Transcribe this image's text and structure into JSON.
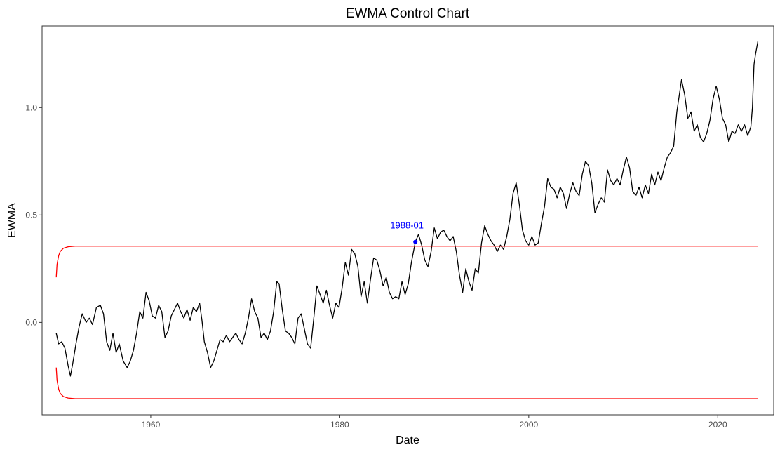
{
  "chart_data": {
    "type": "line",
    "title": "EWMA Control Chart",
    "xlabel": "Date",
    "ylabel": "EWMA",
    "xlim": [
      "1948-07",
      "2025-12"
    ],
    "ylim": [
      -0.43,
      1.38
    ],
    "x_ticks": [
      1960,
      1980,
      2000,
      2020
    ],
    "y_ticks": [
      0.0,
      0.5,
      1.0
    ],
    "y_tick_labels": [
      "0.0",
      "0.5",
      "1.0"
    ],
    "grid": false,
    "series": [
      {
        "color": "#000000",
        "points": [
          [
            "1950-01",
            -0.05
          ],
          [
            "1950-04",
            -0.1
          ],
          [
            "1950-08",
            -0.09
          ],
          [
            "1950-12",
            -0.12
          ],
          [
            "1951-04",
            -0.2
          ],
          [
            "1951-07",
            -0.25
          ],
          [
            "1951-10",
            -0.19
          ],
          [
            "1952-02",
            -0.1
          ],
          [
            "1952-06",
            -0.02
          ],
          [
            "1952-10",
            0.04
          ],
          [
            "1953-03",
            0.0
          ],
          [
            "1953-07",
            0.02
          ],
          [
            "1953-11",
            -0.01
          ],
          [
            "1954-04",
            0.07
          ],
          [
            "1954-09",
            0.08
          ],
          [
            "1955-01",
            0.04
          ],
          [
            "1955-05",
            -0.09
          ],
          [
            "1955-09",
            -0.13
          ],
          [
            "1956-01",
            -0.05
          ],
          [
            "1956-05",
            -0.14
          ],
          [
            "1956-09",
            -0.1
          ],
          [
            "1957-02",
            -0.18
          ],
          [
            "1957-07",
            -0.21
          ],
          [
            "1957-11",
            -0.18
          ],
          [
            "1958-03",
            -0.13
          ],
          [
            "1958-07",
            -0.05
          ],
          [
            "1958-11",
            0.05
          ],
          [
            "1959-03",
            0.02
          ],
          [
            "1959-07",
            0.14
          ],
          [
            "1959-11",
            0.1
          ],
          [
            "1960-03",
            0.03
          ],
          [
            "1960-07",
            0.02
          ],
          [
            "1960-11",
            0.08
          ],
          [
            "1961-03",
            0.05
          ],
          [
            "1961-07",
            -0.07
          ],
          [
            "1961-11",
            -0.04
          ],
          [
            "1962-03",
            0.03
          ],
          [
            "1962-07",
            0.06
          ],
          [
            "1962-11",
            0.09
          ],
          [
            "1963-03",
            0.05
          ],
          [
            "1963-07",
            0.02
          ],
          [
            "1963-11",
            0.06
          ],
          [
            "1964-03",
            0.01
          ],
          [
            "1964-07",
            0.07
          ],
          [
            "1964-11",
            0.05
          ],
          [
            "1965-03",
            0.09
          ],
          [
            "1965-06",
            0.01
          ],
          [
            "1965-09",
            -0.09
          ],
          [
            "1966-01",
            -0.14
          ],
          [
            "1966-05",
            -0.21
          ],
          [
            "1966-09",
            -0.18
          ],
          [
            "1967-01",
            -0.13
          ],
          [
            "1967-05",
            -0.08
          ],
          [
            "1967-09",
            -0.09
          ],
          [
            "1968-01",
            -0.06
          ],
          [
            "1968-05",
            -0.09
          ],
          [
            "1968-09",
            -0.07
          ],
          [
            "1969-01",
            -0.05
          ],
          [
            "1969-05",
            -0.08
          ],
          [
            "1969-09",
            -0.1
          ],
          [
            "1970-01",
            -0.05
          ],
          [
            "1970-05",
            0.02
          ],
          [
            "1970-09",
            0.11
          ],
          [
            "1971-01",
            0.05
          ],
          [
            "1971-05",
            0.02
          ],
          [
            "1971-09",
            -0.07
          ],
          [
            "1972-01",
            -0.05
          ],
          [
            "1972-05",
            -0.08
          ],
          [
            "1972-09",
            -0.04
          ],
          [
            "1973-01",
            0.05
          ],
          [
            "1973-05",
            0.19
          ],
          [
            "1973-08",
            0.18
          ],
          [
            "1973-12",
            0.06
          ],
          [
            "1974-04",
            -0.04
          ],
          [
            "1974-08",
            -0.05
          ],
          [
            "1974-12",
            -0.07
          ],
          [
            "1975-04",
            -0.1
          ],
          [
            "1975-08",
            0.02
          ],
          [
            "1975-12",
            0.04
          ],
          [
            "1976-04",
            -0.03
          ],
          [
            "1976-08",
            -0.1
          ],
          [
            "1976-12",
            -0.12
          ],
          [
            "1977-04",
            0.02
          ],
          [
            "1977-08",
            0.17
          ],
          [
            "1977-12",
            0.13
          ],
          [
            "1978-04",
            0.09
          ],
          [
            "1978-08",
            0.15
          ],
          [
            "1978-12",
            0.08
          ],
          [
            "1979-04",
            0.02
          ],
          [
            "1979-08",
            0.09
          ],
          [
            "1979-12",
            0.07
          ],
          [
            "1980-04",
            0.16
          ],
          [
            "1980-08",
            0.28
          ],
          [
            "1980-12",
            0.22
          ],
          [
            "1981-04",
            0.34
          ],
          [
            "1981-08",
            0.32
          ],
          [
            "1981-12",
            0.26
          ],
          [
            "1982-04",
            0.12
          ],
          [
            "1982-08",
            0.19
          ],
          [
            "1982-12",
            0.09
          ],
          [
            "1983-04",
            0.2
          ],
          [
            "1983-08",
            0.3
          ],
          [
            "1983-12",
            0.29
          ],
          [
            "1984-04",
            0.24
          ],
          [
            "1984-08",
            0.17
          ],
          [
            "1984-12",
            0.21
          ],
          [
            "1985-04",
            0.14
          ],
          [
            "1985-08",
            0.11
          ],
          [
            "1985-12",
            0.12
          ],
          [
            "1986-04",
            0.11
          ],
          [
            "1986-08",
            0.19
          ],
          [
            "1986-12",
            0.13
          ],
          [
            "1987-04",
            0.18
          ],
          [
            "1987-08",
            0.28
          ],
          [
            "1988-01",
            0.375
          ],
          [
            "1988-05",
            0.41
          ],
          [
            "1988-09",
            0.36
          ],
          [
            "1989-01",
            0.29
          ],
          [
            "1989-05",
            0.26
          ],
          [
            "1989-09",
            0.33
          ],
          [
            "1990-01",
            0.44
          ],
          [
            "1990-05",
            0.39
          ],
          [
            "1990-09",
            0.42
          ],
          [
            "1991-01",
            0.43
          ],
          [
            "1991-05",
            0.4
          ],
          [
            "1991-09",
            0.38
          ],
          [
            "1992-01",
            0.4
          ],
          [
            "1992-05",
            0.33
          ],
          [
            "1992-09",
            0.22
          ],
          [
            "1993-01",
            0.14
          ],
          [
            "1993-05",
            0.25
          ],
          [
            "1993-09",
            0.19
          ],
          [
            "1994-01",
            0.15
          ],
          [
            "1994-05",
            0.25
          ],
          [
            "1994-09",
            0.23
          ],
          [
            "1995-01",
            0.37
          ],
          [
            "1995-05",
            0.45
          ],
          [
            "1995-09",
            0.41
          ],
          [
            "1996-01",
            0.38
          ],
          [
            "1996-05",
            0.36
          ],
          [
            "1996-09",
            0.33
          ],
          [
            "1997-01",
            0.36
          ],
          [
            "1997-05",
            0.34
          ],
          [
            "1997-09",
            0.4
          ],
          [
            "1998-01",
            0.48
          ],
          [
            "1998-05",
            0.6
          ],
          [
            "1998-09",
            0.65
          ],
          [
            "1999-01",
            0.55
          ],
          [
            "1999-05",
            0.43
          ],
          [
            "1999-09",
            0.38
          ],
          [
            "2000-01",
            0.36
          ],
          [
            "2000-05",
            0.4
          ],
          [
            "2000-09",
            0.36
          ],
          [
            "2001-01",
            0.37
          ],
          [
            "2001-05",
            0.46
          ],
          [
            "2001-09",
            0.54
          ],
          [
            "2002-01",
            0.67
          ],
          [
            "2002-05",
            0.63
          ],
          [
            "2002-09",
            0.62
          ],
          [
            "2003-01",
            0.58
          ],
          [
            "2003-05",
            0.63
          ],
          [
            "2003-09",
            0.6
          ],
          [
            "2004-01",
            0.53
          ],
          [
            "2004-05",
            0.6
          ],
          [
            "2004-09",
            0.65
          ],
          [
            "2005-01",
            0.61
          ],
          [
            "2005-05",
            0.59
          ],
          [
            "2005-09",
            0.69
          ],
          [
            "2006-01",
            0.75
          ],
          [
            "2006-05",
            0.73
          ],
          [
            "2006-09",
            0.65
          ],
          [
            "2007-01",
            0.51
          ],
          [
            "2007-05",
            0.55
          ],
          [
            "2007-09",
            0.58
          ],
          [
            "2008-01",
            0.56
          ],
          [
            "2008-05",
            0.71
          ],
          [
            "2008-09",
            0.66
          ],
          [
            "2009-01",
            0.64
          ],
          [
            "2009-05",
            0.67
          ],
          [
            "2009-09",
            0.64
          ],
          [
            "2010-01",
            0.71
          ],
          [
            "2010-05",
            0.77
          ],
          [
            "2010-09",
            0.72
          ],
          [
            "2011-01",
            0.61
          ],
          [
            "2011-05",
            0.59
          ],
          [
            "2011-09",
            0.63
          ],
          [
            "2012-01",
            0.58
          ],
          [
            "2012-05",
            0.64
          ],
          [
            "2012-09",
            0.6
          ],
          [
            "2013-01",
            0.69
          ],
          [
            "2013-05",
            0.64
          ],
          [
            "2013-09",
            0.7
          ],
          [
            "2014-01",
            0.66
          ],
          [
            "2014-05",
            0.72
          ],
          [
            "2014-09",
            0.77
          ],
          [
            "2015-01",
            0.79
          ],
          [
            "2015-05",
            0.82
          ],
          [
            "2015-09",
            0.98
          ],
          [
            "2016-01",
            1.08
          ],
          [
            "2016-03",
            1.13
          ],
          [
            "2016-07",
            1.06
          ],
          [
            "2016-11",
            0.95
          ],
          [
            "2017-03",
            0.98
          ],
          [
            "2017-07",
            0.89
          ],
          [
            "2017-11",
            0.92
          ],
          [
            "2018-03",
            0.86
          ],
          [
            "2018-07",
            0.84
          ],
          [
            "2018-11",
            0.88
          ],
          [
            "2019-03",
            0.94
          ],
          [
            "2019-07",
            1.04
          ],
          [
            "2019-11",
            1.1
          ],
          [
            "2020-03",
            1.04
          ],
          [
            "2020-07",
            0.95
          ],
          [
            "2020-11",
            0.92
          ],
          [
            "2021-03",
            0.84
          ],
          [
            "2021-07",
            0.89
          ],
          [
            "2021-11",
            0.88
          ],
          [
            "2022-03",
            0.92
          ],
          [
            "2022-07",
            0.89
          ],
          [
            "2022-11",
            0.92
          ],
          [
            "2023-03",
            0.87
          ],
          [
            "2023-07",
            0.91
          ],
          [
            "2023-09",
            1.0
          ],
          [
            "2023-11",
            1.2
          ],
          [
            "2024-01",
            1.25
          ],
          [
            "2024-04",
            1.31
          ]
        ]
      },
      {
        "color": "#ff0000",
        "points": [
          [
            "1950-01",
            0.21
          ],
          [
            "1950-02",
            0.27
          ],
          [
            "1950-04",
            0.31
          ],
          [
            "1950-06",
            0.33
          ],
          [
            "1950-10",
            0.345
          ],
          [
            "1951-04",
            0.352
          ],
          [
            "1952-01",
            0.355
          ],
          [
            "2024-04",
            0.355
          ]
        ]
      },
      {
        "color": "#ff0000",
        "points": [
          [
            "1950-01",
            -0.21
          ],
          [
            "1950-02",
            -0.27
          ],
          [
            "1950-04",
            -0.31
          ],
          [
            "1950-06",
            -0.33
          ],
          [
            "1950-10",
            -0.345
          ],
          [
            "1951-04",
            -0.352
          ],
          [
            "1952-01",
            -0.355
          ],
          [
            "2024-04",
            -0.355
          ]
        ]
      }
    ],
    "annotations": [
      {
        "text": "1988-01",
        "x": "1988-01",
        "y": 0.375,
        "color": "#0000ff"
      }
    ]
  }
}
